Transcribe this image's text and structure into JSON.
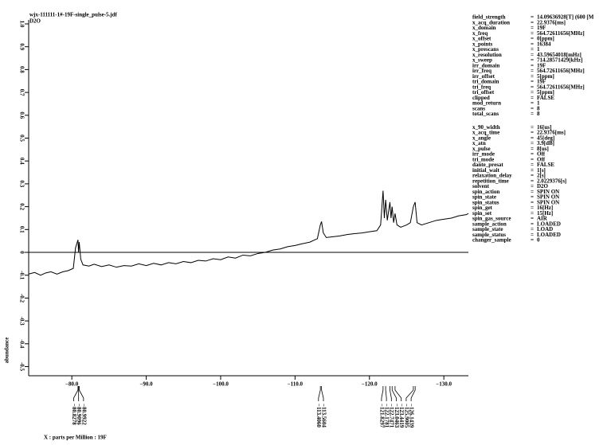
{
  "chart_data": {
    "type": "line",
    "title": "wjx-111111-1#-19F-single_pulse-5.jdf",
    "subtitle": "D2O",
    "y_label": "abundance",
    "x_label": "X : parts per Million : 19F",
    "color": "#000000",
    "xlim": [
      -74.2,
      -133.3
    ],
    "ylim": [
      -0.54,
      1.0
    ],
    "xticks": [
      {
        "value": -80,
        "label": "−80.0"
      },
      {
        "value": -90,
        "label": "−90.0"
      },
      {
        "value": -100,
        "label": "−100.0"
      },
      {
        "value": -110,
        "label": "−110.0"
      },
      {
        "value": -120,
        "label": "−120.0"
      },
      {
        "value": -130,
        "label": "−130.0"
      }
    ],
    "yticks": [
      {
        "value": 1,
        "label": "1.0"
      },
      0.9,
      0.8,
      0.7,
      0.6,
      0.5,
      0.4,
      0.3,
      0.2,
      0.1,
      0,
      -0.1,
      -0.2,
      -0.3,
      -0.4,
      -0.5
    ],
    "x": [
      -74.2,
      -75,
      -75.8,
      -76.5,
      -77.2,
      -78,
      -78.8,
      -79.5,
      -80.2,
      -80.5,
      -80.8278,
      -80.9,
      -80.99,
      -81.2,
      -81.5,
      -82.3,
      -83,
      -84,
      -85,
      -86,
      -87,
      -88,
      -89,
      -90,
      -91,
      -92,
      -93,
      -94,
      -95,
      -96,
      -97,
      -98,
      -99,
      -100,
      -101,
      -102,
      -103,
      -104,
      -105,
      -106,
      -107,
      -108,
      -109,
      -110,
      -111,
      -112,
      -113,
      -113.4,
      -113.56,
      -113.8,
      -114.2,
      -115,
      -116,
      -117,
      -118,
      -119,
      -120,
      -121,
      -121.5,
      -121.83,
      -122,
      -122.18,
      -122.4,
      -122.75,
      -122.9,
      -123.05,
      -123.25,
      -123.44,
      -123.7,
      -124.2,
      -125,
      -125.5,
      -125.9,
      -126.14,
      -126.4,
      -127,
      -128,
      -129,
      -130,
      -131,
      -132,
      -133,
      -133.3
    ],
    "values": [
      -0.095,
      -0.088,
      -0.1,
      -0.09,
      -0.085,
      -0.095,
      -0.085,
      -0.08,
      -0.07,
      0.02,
      0.055,
      0.0,
      0.045,
      -0.03,
      -0.055,
      -0.06,
      -0.052,
      -0.062,
      -0.055,
      -0.065,
      -0.058,
      -0.06,
      -0.05,
      -0.058,
      -0.048,
      -0.055,
      -0.045,
      -0.05,
      -0.04,
      -0.045,
      -0.035,
      -0.038,
      -0.028,
      -0.032,
      -0.02,
      -0.025,
      -0.012,
      -0.015,
      -0.005,
      0.0,
      0.01,
      0.015,
      0.025,
      0.03,
      0.038,
      0.045,
      0.06,
      0.12,
      0.135,
      0.085,
      0.065,
      0.068,
      0.072,
      0.078,
      0.082,
      0.085,
      0.09,
      0.095,
      0.12,
      0.27,
      0.15,
      0.23,
      0.14,
      0.22,
      0.15,
      0.2,
      0.13,
      0.17,
      0.12,
      0.11,
      0.12,
      0.13,
      0.2,
      0.22,
      0.13,
      0.12,
      0.13,
      0.14,
      0.145,
      0.15,
      0.16,
      0.165,
      0.17
    ],
    "peak_groups": [
      [
        {
          "value": -80.8278,
          "label": "−80.8278"
        },
        {
          "value": -80.9096,
          "label": "−80.9096"
        },
        {
          "value": -80.9922,
          "label": "−80.9922"
        }
      ],
      [
        {
          "value": -113.406,
          "label": "−113.4060"
        },
        {
          "value": -113.5604,
          "label": "−113.5604"
        }
      ],
      [
        {
          "value": -121.8297,
          "label": "−121.8297"
        },
        {
          "value": -122.1781,
          "label": "−122.1781"
        },
        {
          "value": -122.7471,
          "label": "−122.7471"
        },
        {
          "value": -123.0463,
          "label": "−123.0463"
        },
        {
          "value": -123.4419,
          "label": "−123.4419"
        },
        {
          "value": -125.9005,
          "label": "−125.9005"
        },
        {
          "value": -126.1439,
          "label": "−126.1439"
        }
      ]
    ]
  },
  "parameters": [
    [
      [
        "field_strength",
        "14.09636928[T] (600 [M"
      ],
      [
        "x_acq_duration",
        "22.9376[ms]"
      ],
      [
        "x_domain",
        "19F"
      ],
      [
        "x_freq",
        "564.72611656[MHz]"
      ],
      [
        "x_offset",
        "0[ppm]"
      ],
      [
        "x_points",
        "16384"
      ],
      [
        "x_prescans",
        "1"
      ],
      [
        "x_resolution",
        "43.59654018[mHz]"
      ],
      [
        "x_sweep",
        "714.28571429[kHz]"
      ],
      [
        "irr_domain",
        "19F"
      ],
      [
        "irr_freq",
        "564.72611656[MHz]"
      ],
      [
        "irr_offset",
        "5[ppm]"
      ],
      [
        "tri_domain",
        "19F"
      ],
      [
        "tri_freq",
        "564.72611656[MHz]"
      ],
      [
        "tri_offset",
        "5[ppm]"
      ],
      [
        "clipped",
        "FALSE"
      ],
      [
        "mod_return",
        "1"
      ],
      [
        "scans",
        "8"
      ],
      [
        "total_scans",
        "8"
      ]
    ],
    [
      [
        "x_90_width",
        "16[us]"
      ],
      [
        "x_acq_time",
        "22.9376[ms]"
      ],
      [
        "x_angle",
        "45[deg]"
      ],
      [
        "x_atn",
        "3.9[dB]"
      ],
      [
        "x_pulse",
        "8[us]"
      ],
      [
        "irr_mode",
        "Off"
      ],
      [
        "tri_mode",
        "Off"
      ],
      [
        "dante_presat",
        "FALSE"
      ],
      [
        "initial_wait",
        "1[s]"
      ],
      [
        "relaxation_delay",
        "2[s]"
      ],
      [
        "repetition_time",
        "2.0229376[s]"
      ],
      [
        "solvent",
        "D2O"
      ],
      [
        "spin_action",
        "SPIN ON"
      ],
      [
        "spin_state",
        "SPIN ON"
      ],
      [
        "spin_status",
        "SPIN ON"
      ],
      [
        "spin_get",
        "16[Hz]"
      ],
      [
        "spin_set",
        "15[Hz]"
      ],
      [
        "spin_gas_source",
        "AIR"
      ],
      [
        "sample_action",
        "LOADED"
      ],
      [
        "sample_state",
        "LOAD"
      ],
      [
        "sample_status",
        "LOADED"
      ],
      [
        "changer_sample",
        "0"
      ]
    ]
  ]
}
